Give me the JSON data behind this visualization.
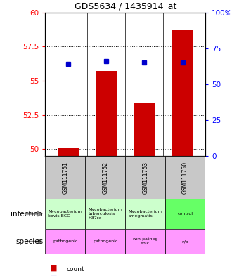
{
  "title": "GDS5634 / 1435914_at",
  "samples": [
    "GSM111751",
    "GSM111752",
    "GSM111753",
    "GSM111750"
  ],
  "bar_values": [
    50.05,
    55.7,
    53.4,
    58.7
  ],
  "percentile_values": [
    64,
    66,
    65,
    65
  ],
  "ylim_left": [
    49.5,
    60
  ],
  "ylim_right": [
    0,
    100
  ],
  "yticks_left": [
    50,
    52.5,
    55,
    57.5,
    60
  ],
  "yticks_right": [
    0,
    25,
    50,
    75,
    100
  ],
  "ytick_labels_left": [
    "50",
    "52.5",
    "55",
    "57.5",
    "60"
  ],
  "ytick_labels_right": [
    "0",
    "25",
    "50",
    "75",
    "100%"
  ],
  "bar_color": "#cc0000",
  "dot_color": "#0000cc",
  "infection_labels": [
    "Mycobacterium bovis BCG",
    "Mycobacterium tuberculosis H37ra",
    "Mycobacterium smegmatis",
    "control"
  ],
  "species_labels": [
    "pathogenic",
    "pathogenic",
    "non-pathogenic\nenic",
    "n/a"
  ],
  "species_labels_wrapped": [
    "pathogenic",
    "pathogenic",
    "non-pathog\nenic",
    "n/a"
  ],
  "infection_labels_wrapped": [
    "Mycobacterium bovis BCG",
    "Mycobacterium tuberculosis H37ra",
    "Mycobacterium smegmatis",
    "control"
  ],
  "infection_colors": [
    "#ccffcc",
    "#ccffcc",
    "#ccffcc",
    "#66ff66"
  ],
  "species_colors": [
    "#ff99ff",
    "#ff99ff",
    "#ff99ff",
    "#ff99ff"
  ],
  "sample_bg_color": "#c8c8c8",
  "row_label_infection": "infection",
  "row_label_species": "species",
  "legend_count_color": "#cc0000",
  "legend_pct_color": "#0000cc"
}
